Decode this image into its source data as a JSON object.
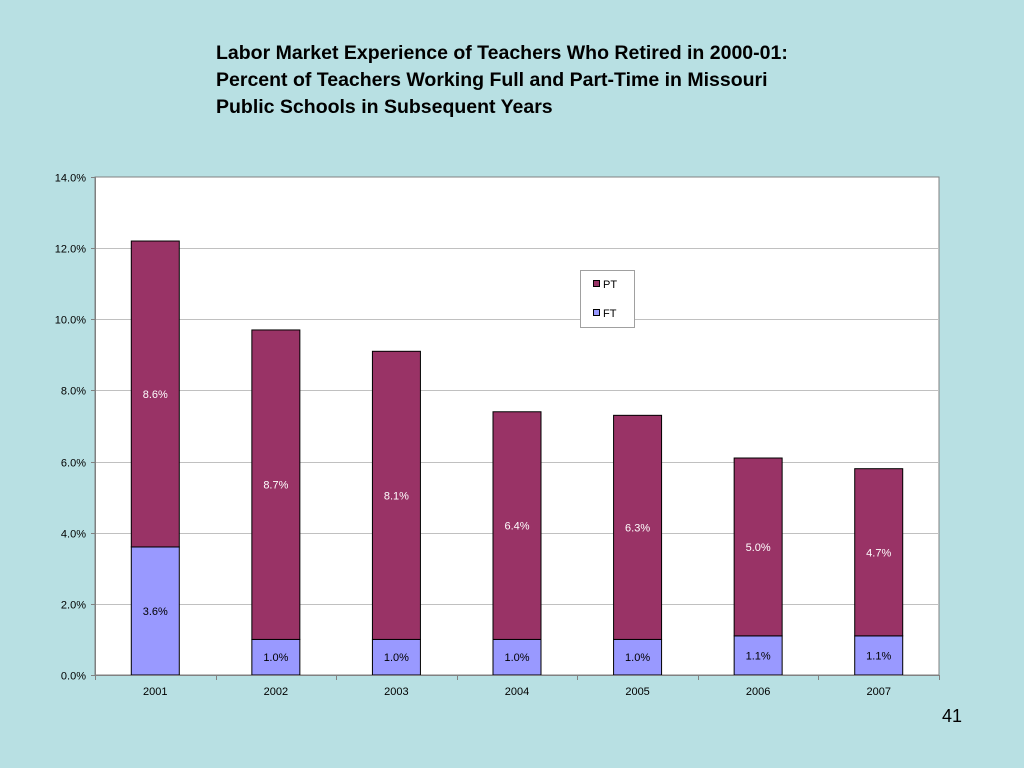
{
  "slide": {
    "title_lines": [
      "Labor Market Experience of Teachers Who Retired in 2000-01:",
      "Percent of Teachers Working Full and Part-Time in Missouri",
      "Public Schools in Subsequent Years"
    ],
    "page_number": "41"
  },
  "colors": {
    "background": "#b8e0e3",
    "plot_area": "#ffffff",
    "pt": "#993366",
    "ft": "#9999ff",
    "gridline": "#c0c0c0",
    "bar_outline": "#000000",
    "pt_label": "#ffffff",
    "ft_label": "#000000"
  },
  "chart_data": {
    "type": "bar",
    "stacked": true,
    "title": "",
    "xlabel": "",
    "ylabel": "",
    "categories": [
      "2001",
      "2002",
      "2003",
      "2004",
      "2005",
      "2006",
      "2007"
    ],
    "series": [
      {
        "name": "FT",
        "values": [
          3.6,
          1.0,
          1.0,
          1.0,
          1.0,
          1.1,
          1.1
        ],
        "labels": [
          "3.6%",
          "1.0%",
          "1.0%",
          "1.0%",
          "1.0%",
          "1.1%",
          "1.1%"
        ]
      },
      {
        "name": "PT",
        "values": [
          8.6,
          8.7,
          8.1,
          6.4,
          6.3,
          5.0,
          4.7
        ],
        "labels": [
          "8.6%",
          "8.7%",
          "8.1%",
          "6.4%",
          "6.3%",
          "5.0%",
          "4.7%"
        ]
      }
    ],
    "ylim": [
      0,
      14
    ],
    "yticks": [
      0,
      2,
      4,
      6,
      8,
      10,
      12,
      14
    ],
    "ytick_labels": [
      "0.0%",
      "2.0%",
      "4.0%",
      "6.0%",
      "8.0%",
      "10.0%",
      "12.0%",
      "14.0%"
    ],
    "grid": true,
    "legend": {
      "position": "top-right",
      "entries": [
        "PT",
        "FT"
      ]
    }
  }
}
